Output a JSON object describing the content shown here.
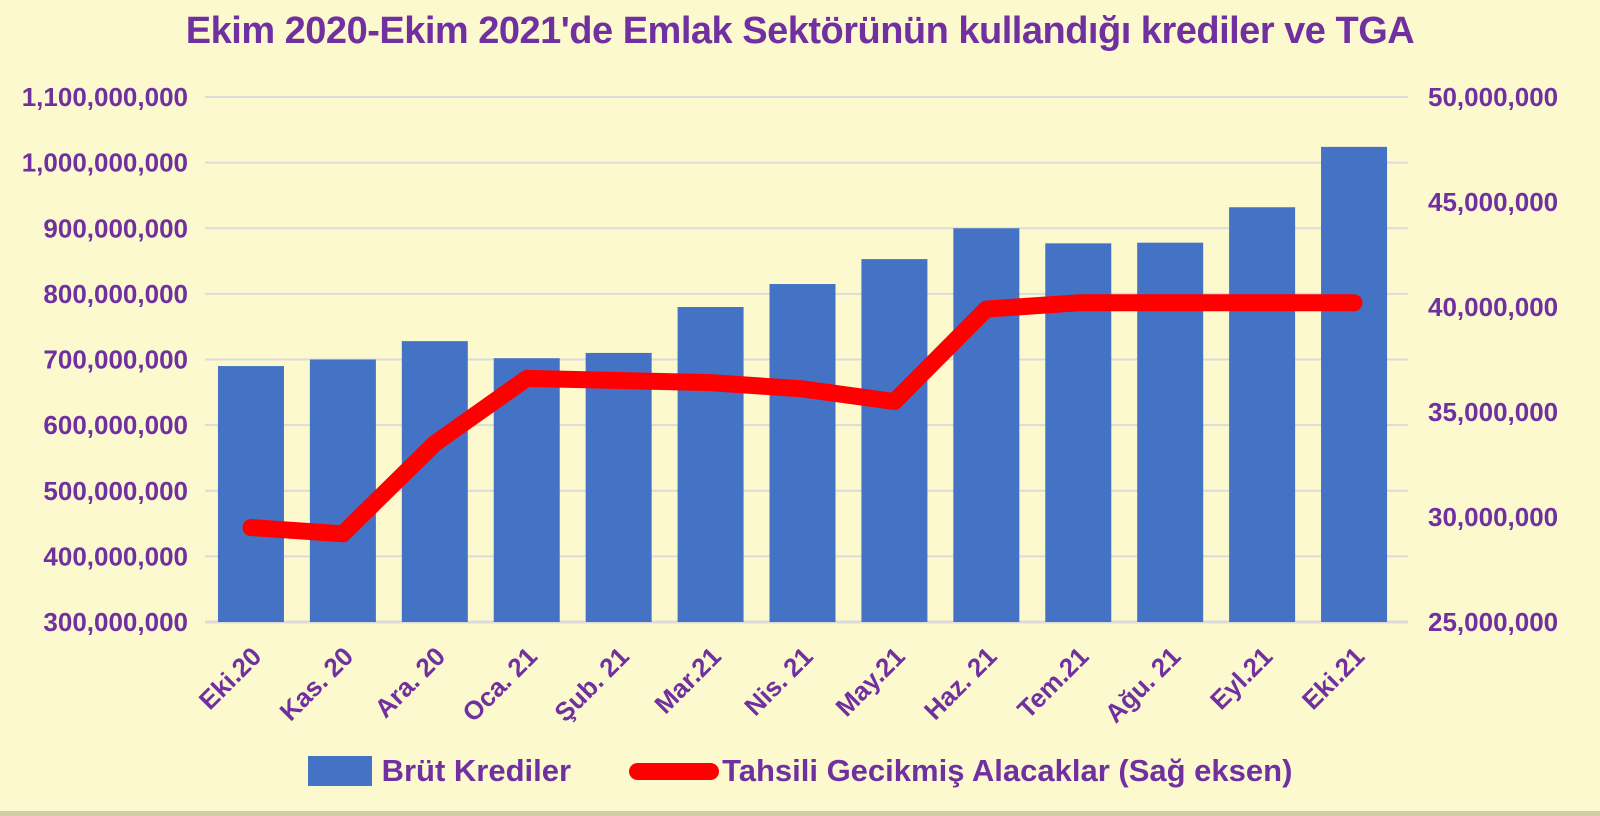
{
  "chart_data": {
    "type": "combo",
    "title": "Ekim 2020-Ekim 2021'de Emlak Sektörünün kullandığı krediler ve TGA",
    "categories": [
      "Eki.20",
      "Kas. 20",
      "Ara. 20",
      "Oca. 21",
      "Şub. 21",
      "Mar.21",
      "Nis. 21",
      "May.21",
      "Haz. 21",
      "Tem.21",
      "Ağu. 21",
      "Eyl.21",
      "Eki.21"
    ],
    "series": [
      {
        "name": "Brüt Krediler",
        "type": "bar",
        "axis": "left",
        "color": "#4472C4",
        "values": [
          690000000,
          700000000,
          728000000,
          702000000,
          710000000,
          780000000,
          815000000,
          853000000,
          900000000,
          877000000,
          878000000,
          932000000,
          1024000000
        ]
      },
      {
        "name": "Tahsili Gecikmiş Alacaklar (Sağ eksen)",
        "type": "line",
        "axis": "right",
        "color": "#FF0000",
        "values": [
          29500000,
          29200000,
          33500000,
          36600000,
          36500000,
          36400000,
          36100000,
          35500000,
          39900000,
          40200000,
          40200000,
          40200000,
          40200000
        ]
      }
    ],
    "left_axis": {
      "min": 300000000,
      "max": 1100000000,
      "step": 100000000,
      "ticks_top_to_bottom": [
        "1,100,000,000",
        "1,000,000,000",
        "900,000,000",
        "800,000,000",
        "700,000,000",
        "600,000,000",
        "500,000,000",
        "400,000,000",
        "300,000,000"
      ]
    },
    "right_axis": {
      "min": 25000000,
      "max": 50000000,
      "step": 5000000,
      "ticks_top_to_bottom": [
        "50,000,000",
        "45,000,000",
        "40,000,000",
        "35,000,000",
        "30,000,000",
        "25,000,000"
      ]
    },
    "grid": true,
    "legend_position": "bottom",
    "background": "#FCF9CF",
    "text_color": "#7030A0",
    "gridline_color": "#DBDBDB"
  }
}
